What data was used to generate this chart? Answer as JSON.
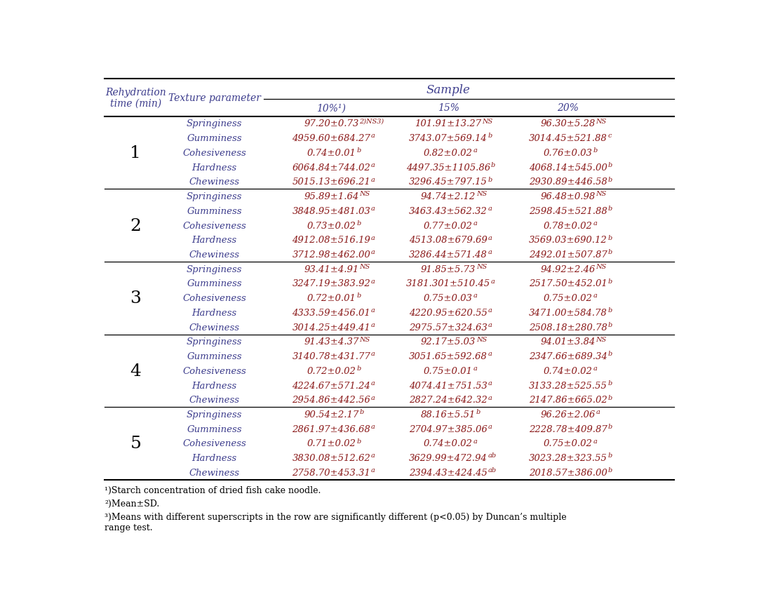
{
  "sample_header": "Sample",
  "col0_label": "Rehydration\ntime (min)",
  "col1_label": "Texture parameter",
  "sub_headers": [
    "10%¹)",
    "15%",
    "20%"
  ],
  "footnotes": [
    "¹)Starch concentration of dried fish cake noodle.",
    "²)Mean±SD.",
    "³)Means with different superscripts in the row are significantly different (p<0.05) by Duncan’s multiple\nrange test."
  ],
  "rows": [
    {
      "time": "1",
      "params": [
        {
          "name": "Springiness",
          "v10": "97.20±0.73",
          "s10": "2)NS3)",
          "v15": "101.91±13.27",
          "s15": "NS",
          "v20": "96.30±5.28",
          "s20": "NS"
        },
        {
          "name": "Gumminess",
          "v10": "4959.60±684.27",
          "s10": "a",
          "v15": "3743.07±569.14",
          "s15": "b",
          "v20": "3014.45±521.88",
          "s20": "c"
        },
        {
          "name": "Cohesiveness",
          "v10": "0.74±0.01",
          "s10": "b",
          "v15": "0.82±0.02",
          "s15": "a",
          "v20": "0.76±0.03",
          "s20": "b"
        },
        {
          "name": "Hardness",
          "v10": "6064.84±744.02",
          "s10": "a",
          "v15": "4497.35±1105.86",
          "s15": "b",
          "v20": "4068.14±545.00",
          "s20": "b"
        },
        {
          "name": "Chewiness",
          "v10": "5015.13±696.21",
          "s10": "a",
          "v15": "3296.45±797.15",
          "s15": "b",
          "v20": "2930.89±446.58",
          "s20": "b"
        }
      ]
    },
    {
      "time": "2",
      "params": [
        {
          "name": "Springiness",
          "v10": "95.89±1.64",
          "s10": "NS",
          "v15": "94.74±2.12",
          "s15": "NS",
          "v20": "96.48±0.98",
          "s20": "NS"
        },
        {
          "name": "Gumminess",
          "v10": "3848.95±481.03",
          "s10": "a",
          "v15": "3463.43±562.32",
          "s15": "a",
          "v20": "2598.45±521.88",
          "s20": "b"
        },
        {
          "name": "Cohesiveness",
          "v10": "0.73±0.02",
          "s10": "b",
          "v15": "0.77±0.02",
          "s15": "a",
          "v20": "0.78±0.02",
          "s20": "a"
        },
        {
          "name": "Hardness",
          "v10": "4912.08±516.19",
          "s10": "a",
          "v15": "4513.08±679.69",
          "s15": "a",
          "v20": "3569.03±690.12",
          "s20": "b"
        },
        {
          "name": "Chewiness",
          "v10": "3712.98±462.00",
          "s10": "a",
          "v15": "3286.44±571.48",
          "s15": "a",
          "v20": "2492.01±507.87",
          "s20": "b"
        }
      ]
    },
    {
      "time": "3",
      "params": [
        {
          "name": "Springiness",
          "v10": "93.41±4.91",
          "s10": "NS",
          "v15": "91.85±5.73",
          "s15": "NS",
          "v20": "94.92±2.46",
          "s20": "NS"
        },
        {
          "name": "Gumminess",
          "v10": "3247.19±383.92",
          "s10": "a",
          "v15": "3181.301±510.45",
          "s15": "a",
          "v20": "2517.50±452.01",
          "s20": "b"
        },
        {
          "name": "Cohesiveness",
          "v10": "0.72±0.01",
          "s10": "b",
          "v15": "0.75±0.03",
          "s15": "a",
          "v20": "0.75±0.02",
          "s20": "a"
        },
        {
          "name": "Hardness",
          "v10": "4333.59±456.01",
          "s10": "a",
          "v15": "4220.95±620.55",
          "s15": "a",
          "v20": "3471.00±584.78",
          "s20": "b"
        },
        {
          "name": "Chewiness",
          "v10": "3014.25±449.41",
          "s10": "a",
          "v15": "2975.57±324.63",
          "s15": "a",
          "v20": "2508.18±280.78",
          "s20": "b"
        }
      ]
    },
    {
      "time": "4",
      "params": [
        {
          "name": "Springiness",
          "v10": "91.43±4.37",
          "s10": "NS",
          "v15": "92.17±5.03",
          "s15": "NS",
          "v20": "94.01±3.84",
          "s20": "NS"
        },
        {
          "name": "Gumminess",
          "v10": "3140.78±431.77",
          "s10": "a",
          "v15": "3051.65±592.68",
          "s15": "a",
          "v20": "2347.66±689.34",
          "s20": "b"
        },
        {
          "name": "Cohesiveness",
          "v10": "0.72±0.02",
          "s10": "b",
          "v15": "0.75±0.01",
          "s15": "a",
          "v20": "0.74±0.02",
          "s20": "a"
        },
        {
          "name": "Hardness",
          "v10": "4224.67±571.24",
          "s10": "a",
          "v15": "4074.41±751.53",
          "s15": "a",
          "v20": "3133.28±525.55",
          "s20": "b"
        },
        {
          "name": "Chewiness",
          "v10": "2954.86±442.56",
          "s10": "a",
          "v15": "2827.24±642.32",
          "s15": "a",
          "v20": "2147.86±665.02",
          "s20": "b"
        }
      ]
    },
    {
      "time": "5",
      "params": [
        {
          "name": "Springiness",
          "v10": "90.54±2.17",
          "s10": "b",
          "v15": "88.16±5.51",
          "s15": "b",
          "v20": "96.26±2.06",
          "s20": "a"
        },
        {
          "name": "Gumminess",
          "v10": "2861.97±436.68",
          "s10": "a",
          "v15": "2704.97±385.06",
          "s15": "a",
          "v20": "2228.78±409.87",
          "s20": "b"
        },
        {
          "name": "Cohesiveness",
          "v10": "0.71±0.02",
          "s10": "b",
          "v15": "0.74±0.02",
          "s15": "a",
          "v20": "0.75±0.02",
          "s20": "a"
        },
        {
          "name": "Hardness",
          "v10": "3830.08±512.62",
          "s10": "a",
          "v15": "3629.99±472.94",
          "s15": "ab",
          "v20": "3023.28±323.55",
          "s20": "b"
        },
        {
          "name": "Chewiness",
          "v10": "2758.70±453.31",
          "s10": "a",
          "v15": "2394.43±424.45",
          "s15": "ab",
          "v20": "2018.57±386.00",
          "s20": "b"
        }
      ]
    }
  ],
  "text_color_header": "#3c3c8c",
  "text_color_data": "#8b1a1a",
  "text_color_time": "#000000",
  "line_color": "#000000",
  "bg_color": "#ffffff",
  "main_fontsize": 9.5,
  "sup_fontsize": 7.0,
  "header_fontsize": 10,
  "time_fontsize": 18,
  "footnote_fontsize": 9.0
}
